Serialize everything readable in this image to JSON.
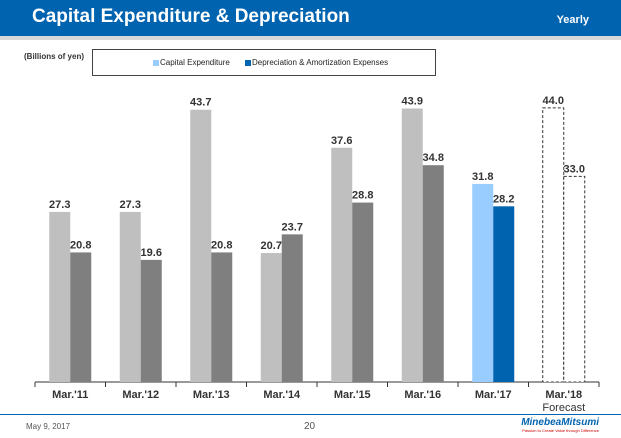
{
  "header": {
    "title": "Capital Expenditure & Depreciation",
    "period": "Yearly"
  },
  "chart_data": {
    "type": "bar",
    "unit_label": "(Billions of yen)",
    "categories": [
      "Mar.'11",
      "Mar.'12",
      "Mar.'13",
      "Mar.'14",
      "Mar.'15",
      "Mar.'16",
      "Mar.'17",
      "Mar.'18"
    ],
    "category_sublabels": [
      "",
      "",
      "",
      "",
      "",
      "",
      "",
      "Forecast"
    ],
    "series": [
      {
        "name": "Capital Expenditure",
        "values": [
          27.3,
          27.3,
          43.7,
          20.7,
          37.6,
          43.9,
          31.8,
          44.0
        ],
        "labels": [
          "27.3",
          "27.3",
          "43.7",
          "20.7",
          "37.6",
          "43.9",
          "31.8",
          "44.0"
        ]
      },
      {
        "name": "Depreciation & Amortization Expenses",
        "values": [
          20.8,
          19.6,
          20.8,
          23.7,
          28.8,
          34.8,
          28.2,
          33.0
        ],
        "labels": [
          "20.8",
          "19.6",
          "20.8",
          "23.7",
          "28.8",
          "34.8",
          "28.2",
          "33.0"
        ]
      }
    ],
    "colors": {
      "past_capex": "#bfbfbf",
      "past_dep": "#7f7f7f",
      "capex": "#99ccff",
      "dep": "#0063b0",
      "forecast": "dashed-outline"
    },
    "ylim": [
      0,
      47
    ],
    "grid": false,
    "legend": "top"
  },
  "footer": {
    "date": "May 9, 2017",
    "page": "20",
    "logo": "MinebeaMitsumi",
    "tagline": "Passion to Create Value through Difference"
  }
}
